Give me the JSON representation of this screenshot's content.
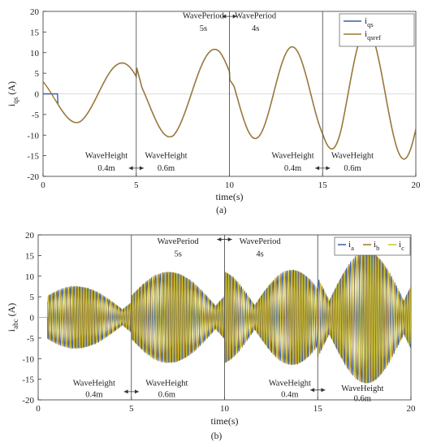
{
  "chart_data": [
    {
      "id": "a",
      "type": "line",
      "panel_label": "(a)",
      "xlabel": "time(s)",
      "ylabel_main": "i",
      "ylabel_sub": "qs",
      "ylabel_unit": "(A)",
      "xlim": [
        0,
        20
      ],
      "ylim": [
        -20,
        20
      ],
      "xticks": [
        0,
        5,
        10,
        15,
        20
      ],
      "yticks": [
        -20,
        -15,
        -10,
        -5,
        0,
        5,
        10,
        15,
        20
      ],
      "grid": false,
      "legend_position": "top-right",
      "series": [
        {
          "key": "iqs",
          "name_main": "i",
          "name_sub": "qs",
          "color": "#3a5ea8"
        },
        {
          "key": "iqsref",
          "name_main": "i",
          "name_sub": "qsref",
          "color": "#a0782c"
        }
      ],
      "events": [
        5,
        10,
        15
      ],
      "annotations": [
        {
          "text": "WavePeriod",
          "x": 8.6,
          "y": 18.3,
          "anchor": "middle"
        },
        {
          "text": "5s",
          "x": 8.6,
          "y": 15.3,
          "anchor": "middle"
        },
        {
          "text": "WavePeriod",
          "x": 11.4,
          "y": 18.3,
          "anchor": "middle"
        },
        {
          "text": "4s",
          "x": 11.4,
          "y": 15.3,
          "anchor": "middle"
        },
        {
          "text": "WaveHeight",
          "x": 3.4,
          "y": -15.6,
          "anchor": "middle"
        },
        {
          "text": "0.4m",
          "x": 3.4,
          "y": -18.6,
          "anchor": "middle"
        },
        {
          "text": "WaveHeight",
          "x": 6.6,
          "y": -15.6,
          "anchor": "middle"
        },
        {
          "text": "0.6m",
          "x": 6.6,
          "y": -18.6,
          "anchor": "middle"
        },
        {
          "text": "WaveHeight",
          "x": 13.4,
          "y": -15.6,
          "anchor": "middle"
        },
        {
          "text": "0.4m",
          "x": 13.4,
          "y": -18.6,
          "anchor": "middle"
        },
        {
          "text": "WaveHeight",
          "x": 16.6,
          "y": -15.6,
          "anchor": "middle"
        },
        {
          "text": "0.6m",
          "x": 16.6,
          "y": -18.6,
          "anchor": "middle"
        }
      ],
      "arrows": [
        {
          "x1": 9.6,
          "x2": 10.4,
          "y": 18.8
        },
        {
          "x1": 4.6,
          "x2": 5.4,
          "y": -18
        },
        {
          "x1": 14.6,
          "x2": 15.4,
          "y": -18
        }
      ]
    },
    {
      "id": "b",
      "type": "line",
      "panel_label": "(b)",
      "xlabel": "time(s)",
      "ylabel_main": "i",
      "ylabel_sub": "abc",
      "ylabel_unit": "(A)",
      "xlim": [
        0,
        20
      ],
      "ylim": [
        -20,
        20
      ],
      "xticks": [
        0,
        5,
        10,
        15,
        20
      ],
      "yticks": [
        -20,
        -15,
        -10,
        -5,
        0,
        5,
        10,
        15,
        20
      ],
      "grid": false,
      "legend_position": "top-right",
      "series": [
        {
          "key": "ia",
          "name_main": "i",
          "name_sub": "a",
          "color": "#3a5ea8"
        },
        {
          "key": "ib",
          "name_main": "i",
          "name_sub": "b",
          "color": "#a0782c"
        },
        {
          "key": "ic",
          "name_main": "i",
          "name_sub": "c",
          "color": "#c9c230"
        }
      ],
      "events": [
        5,
        10,
        15
      ],
      "annotations": [
        {
          "text": "WavePeriod",
          "x": 7.5,
          "y": 17.8,
          "anchor": "middle"
        },
        {
          "text": "5s",
          "x": 7.5,
          "y": 14.8,
          "anchor": "middle"
        },
        {
          "text": "WavePeriod",
          "x": 11.9,
          "y": 17.8,
          "anchor": "middle"
        },
        {
          "text": "4s",
          "x": 11.9,
          "y": 14.8,
          "anchor": "middle"
        },
        {
          "text": "WaveHeight",
          "x": 3.0,
          "y": -16.6,
          "anchor": "middle"
        },
        {
          "text": "0.4m",
          "x": 3.0,
          "y": -19.3,
          "anchor": "middle"
        },
        {
          "text": "WaveHeight",
          "x": 6.9,
          "y": -16.6,
          "anchor": "middle"
        },
        {
          "text": "0.6m",
          "x": 6.9,
          "y": -19.3,
          "anchor": "middle"
        },
        {
          "text": "WaveHeight",
          "x": 13.5,
          "y": -16.6,
          "anchor": "middle"
        },
        {
          "text": "0.4m",
          "x": 13.5,
          "y": -19.3,
          "anchor": "middle"
        },
        {
          "text": "WaveHeight",
          "x": 17.4,
          "y": -17.8,
          "anchor": "middle"
        },
        {
          "text": "0.6m",
          "x": 17.4,
          "y": -20.3,
          "anchor": "middle"
        }
      ],
      "arrows": [
        {
          "x1": 9.6,
          "x2": 10.4,
          "y": 18.9
        },
        {
          "x1": 4.6,
          "x2": 5.4,
          "y": -18
        },
        {
          "x1": 14.6,
          "x2": 15.4,
          "y": -17.6
        }
      ]
    }
  ]
}
